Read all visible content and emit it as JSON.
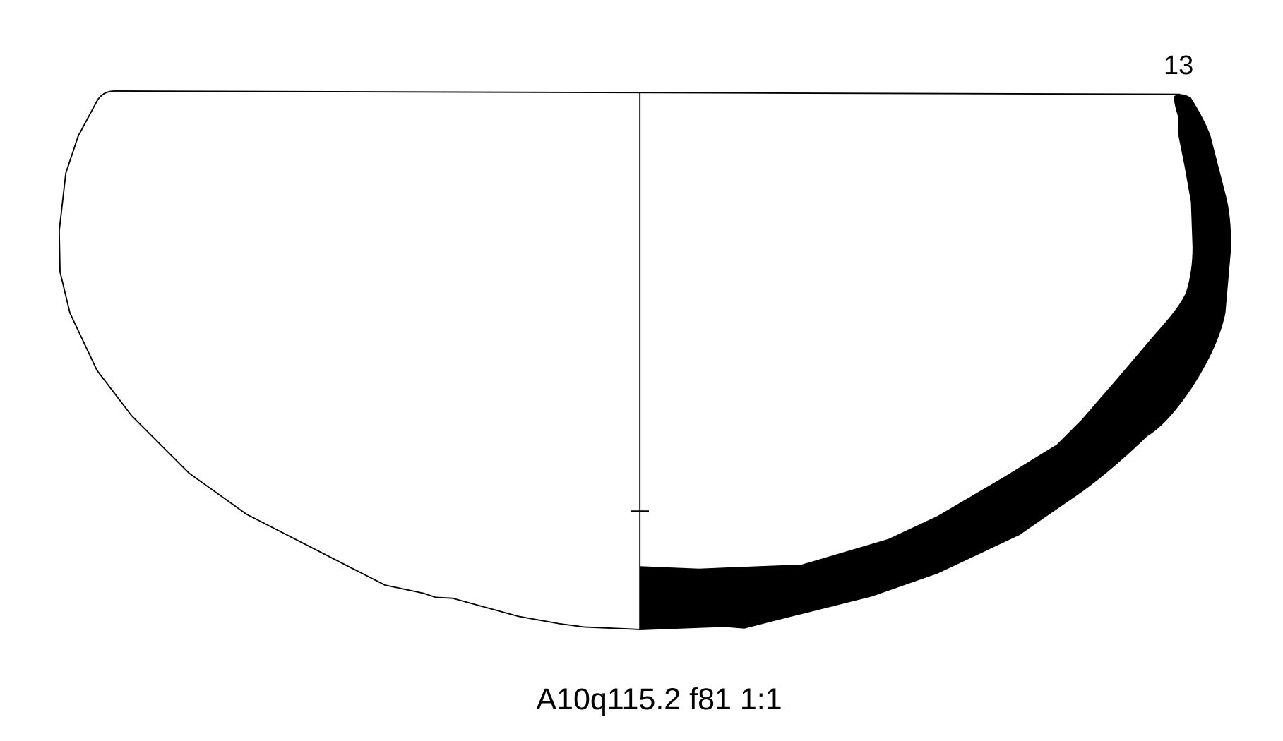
{
  "drawing": {
    "diameter_label": "13",
    "caption": "A10q115.2 f81 1:1",
    "line_color": "#000000",
    "section_fill": "#000000",
    "background": "#ffffff"
  }
}
